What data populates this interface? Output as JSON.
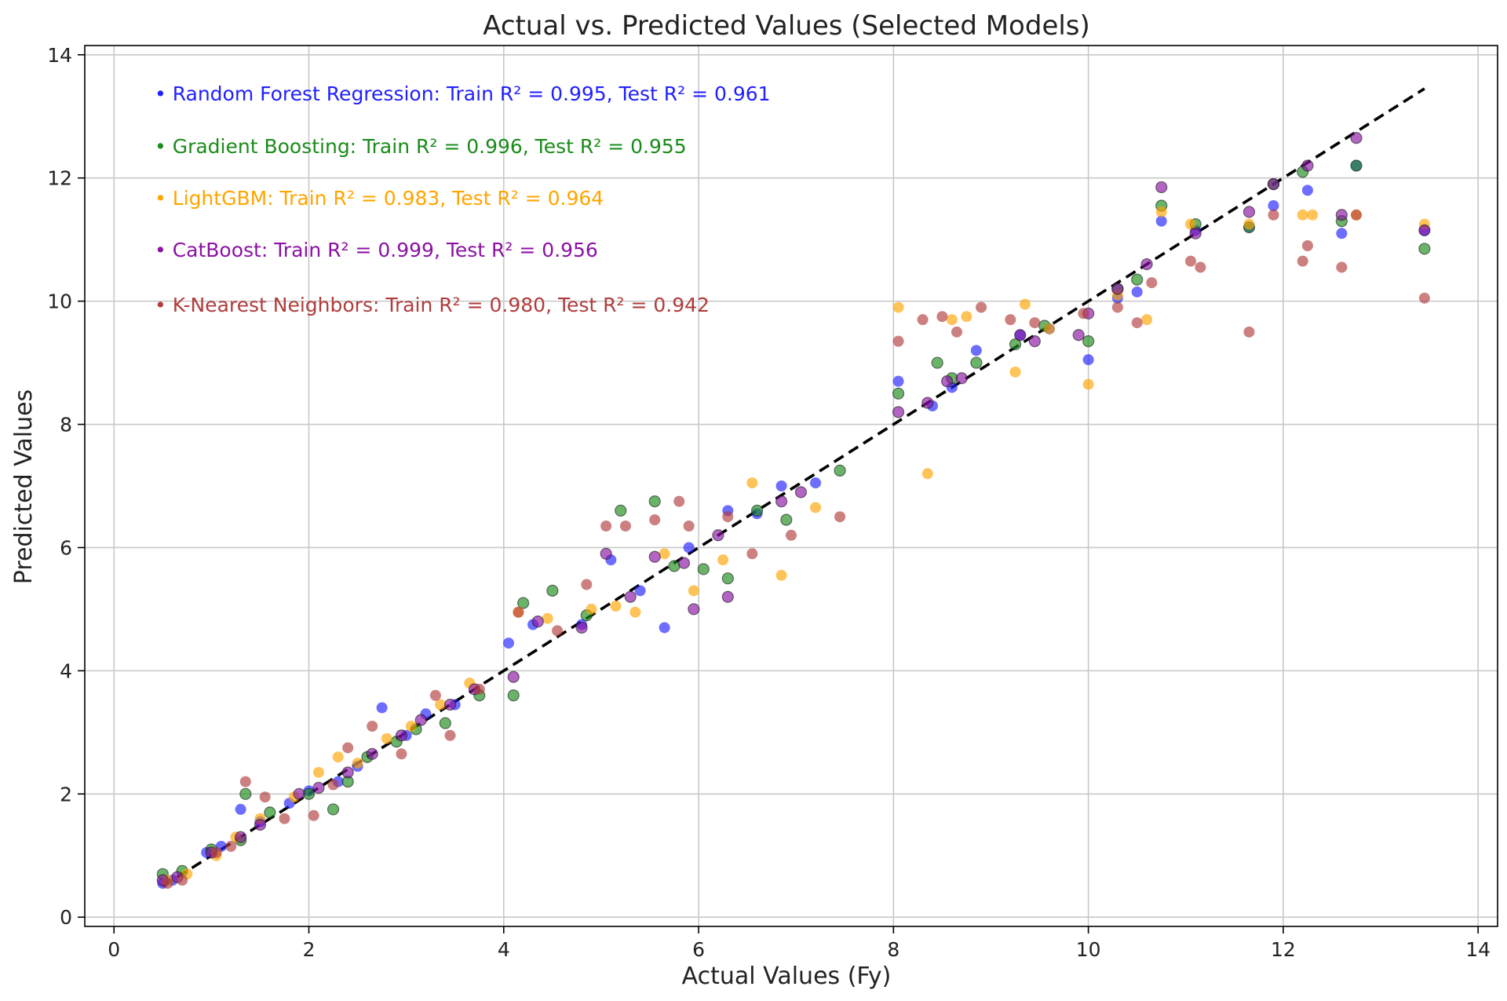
{
  "chart_data": {
    "type": "scatter",
    "title": "Actual vs. Predicted Values (Selected Models)",
    "xlabel": "Actual Values (Fy)",
    "ylabel": "Predicted Values",
    "xlim": [
      -0.3,
      14.2
    ],
    "ylim": [
      -0.15,
      14.15
    ],
    "xticks": [
      0,
      2,
      4,
      6,
      8,
      10,
      12,
      14
    ],
    "yticks": [
      0,
      2,
      4,
      6,
      8,
      10,
      12,
      14
    ],
    "xtick_labels": [
      "0",
      "2",
      "4",
      "6",
      "8",
      "10",
      "12",
      "14"
    ],
    "ytick_labels": [
      "0",
      "2",
      "4",
      "6",
      "8",
      "10",
      "12",
      "14"
    ],
    "grid": true,
    "reference_line": {
      "label": "y = x",
      "from": [
        0.5,
        0.5
      ],
      "to": [
        13.45,
        13.45
      ],
      "style": "dashed",
      "color": "#000000"
    },
    "legend_position": "top-left",
    "series": [
      {
        "name": "Random Forest Regression",
        "legend_text": "• Random Forest Regression: Train R² = 0.995, Test R² = 0.961",
        "color": "#1f1fff",
        "train_r2": 0.995,
        "test_r2": 0.961,
        "points": [
          [
            0.5,
            0.55
          ],
          [
            0.6,
            0.6
          ],
          [
            0.95,
            1.05
          ],
          [
            1.1,
            1.15
          ],
          [
            1.3,
            1.75
          ],
          [
            1.5,
            1.55
          ],
          [
            1.8,
            1.85
          ],
          [
            2.0,
            2.05
          ],
          [
            2.3,
            2.2
          ],
          [
            2.5,
            2.45
          ],
          [
            2.75,
            3.4
          ],
          [
            3.0,
            2.95
          ],
          [
            3.2,
            3.3
          ],
          [
            3.5,
            3.45
          ],
          [
            4.05,
            4.45
          ],
          [
            4.3,
            4.75
          ],
          [
            4.8,
            4.75
          ],
          [
            5.1,
            5.8
          ],
          [
            5.4,
            5.3
          ],
          [
            5.65,
            4.7
          ],
          [
            5.9,
            6.0
          ],
          [
            6.3,
            6.6
          ],
          [
            6.6,
            6.55
          ],
          [
            6.85,
            7.0
          ],
          [
            7.2,
            7.05
          ],
          [
            8.05,
            8.7
          ],
          [
            8.4,
            8.3
          ],
          [
            8.6,
            8.6
          ],
          [
            8.85,
            9.2
          ],
          [
            9.3,
            9.45
          ],
          [
            9.6,
            9.55
          ],
          [
            10.0,
            9.05
          ],
          [
            10.3,
            10.05
          ],
          [
            10.5,
            10.15
          ],
          [
            10.75,
            11.3
          ],
          [
            11.1,
            11.15
          ],
          [
            11.65,
            11.2
          ],
          [
            11.9,
            11.55
          ],
          [
            12.25,
            11.8
          ],
          [
            12.75,
            12.2
          ],
          [
            12.6,
            11.1
          ],
          [
            13.45,
            11.15
          ]
        ]
      },
      {
        "name": "Gradient Boosting",
        "legend_text": "• Gradient Boosting: Train R² = 0.996, Test R² = 0.955",
        "color": "#1a8c1a",
        "train_r2": 0.996,
        "test_r2": 0.955,
        "points": [
          [
            0.5,
            0.7
          ],
          [
            0.7,
            0.75
          ],
          [
            1.0,
            1.1
          ],
          [
            1.3,
            1.25
          ],
          [
            1.35,
            2.0
          ],
          [
            1.6,
            1.7
          ],
          [
            2.0,
            2.0
          ],
          [
            2.25,
            1.75
          ],
          [
            2.4,
            2.2
          ],
          [
            2.6,
            2.6
          ],
          [
            2.9,
            2.85
          ],
          [
            3.1,
            3.05
          ],
          [
            3.4,
            3.15
          ],
          [
            3.75,
            3.6
          ],
          [
            4.1,
            3.6
          ],
          [
            4.2,
            5.1
          ],
          [
            4.5,
            5.3
          ],
          [
            4.85,
            4.9
          ],
          [
            5.2,
            6.6
          ],
          [
            5.55,
            6.75
          ],
          [
            5.75,
            5.7
          ],
          [
            6.05,
            5.65
          ],
          [
            6.3,
            5.5
          ],
          [
            6.6,
            6.6
          ],
          [
            6.9,
            6.45
          ],
          [
            7.45,
            7.25
          ],
          [
            8.05,
            8.5
          ],
          [
            8.45,
            9.0
          ],
          [
            8.6,
            8.75
          ],
          [
            8.85,
            9.0
          ],
          [
            9.25,
            9.3
          ],
          [
            9.55,
            9.6
          ],
          [
            10.0,
            9.35
          ],
          [
            10.3,
            10.2
          ],
          [
            10.5,
            10.35
          ],
          [
            10.75,
            11.55
          ],
          [
            11.1,
            11.25
          ],
          [
            11.65,
            11.2
          ],
          [
            11.9,
            11.9
          ],
          [
            12.2,
            12.1
          ],
          [
            12.75,
            12.2
          ],
          [
            12.6,
            11.3
          ],
          [
            13.45,
            10.85
          ]
        ]
      },
      {
        "name": "LightGBM",
        "legend_text": "• LightGBM: Train R² = 0.983, Test R² = 0.964",
        "color": "#ffa500",
        "train_r2": 0.983,
        "test_r2": 0.964,
        "points": [
          [
            0.55,
            0.6
          ],
          [
            0.75,
            0.7
          ],
          [
            1.05,
            1.0
          ],
          [
            1.25,
            1.3
          ],
          [
            1.5,
            1.6
          ],
          [
            1.85,
            1.95
          ],
          [
            2.1,
            2.35
          ],
          [
            2.3,
            2.6
          ],
          [
            2.5,
            2.5
          ],
          [
            2.8,
            2.9
          ],
          [
            3.05,
            3.1
          ],
          [
            3.35,
            3.45
          ],
          [
            3.65,
            3.8
          ],
          [
            4.15,
            4.95
          ],
          [
            4.45,
            4.85
          ],
          [
            4.9,
            5.0
          ],
          [
            5.15,
            5.05
          ],
          [
            5.35,
            4.95
          ],
          [
            5.65,
            5.9
          ],
          [
            5.95,
            5.3
          ],
          [
            6.25,
            5.8
          ],
          [
            6.55,
            7.05
          ],
          [
            6.85,
            5.55
          ],
          [
            7.2,
            6.65
          ],
          [
            8.05,
            9.9
          ],
          [
            8.35,
            7.2
          ],
          [
            8.6,
            9.7
          ],
          [
            8.75,
            9.75
          ],
          [
            9.25,
            8.85
          ],
          [
            9.35,
            9.95
          ],
          [
            9.6,
            9.55
          ],
          [
            10.0,
            8.65
          ],
          [
            10.3,
            10.1
          ],
          [
            10.6,
            9.7
          ],
          [
            10.75,
            11.45
          ],
          [
            11.05,
            11.25
          ],
          [
            11.65,
            11.25
          ],
          [
            12.2,
            11.4
          ],
          [
            12.3,
            11.4
          ],
          [
            12.75,
            11.4
          ],
          [
            13.45,
            11.25
          ]
        ]
      },
      {
        "name": "CatBoost",
        "legend_text": "• CatBoost: Train R² = 0.999, Test R² = 0.956",
        "color": "#8b12a3",
        "train_r2": 0.999,
        "test_r2": 0.956,
        "points": [
          [
            0.5,
            0.6
          ],
          [
            0.65,
            0.65
          ],
          [
            1.0,
            1.05
          ],
          [
            1.3,
            1.3
          ],
          [
            1.5,
            1.5
          ],
          [
            1.9,
            2.0
          ],
          [
            2.1,
            2.1
          ],
          [
            2.4,
            2.35
          ],
          [
            2.65,
            2.65
          ],
          [
            2.95,
            2.95
          ],
          [
            3.15,
            3.2
          ],
          [
            3.45,
            3.45
          ],
          [
            3.7,
            3.7
          ],
          [
            4.1,
            3.9
          ],
          [
            4.35,
            4.8
          ],
          [
            4.8,
            4.7
          ],
          [
            5.05,
            5.9
          ],
          [
            5.3,
            5.2
          ],
          [
            5.55,
            5.85
          ],
          [
            5.85,
            5.75
          ],
          [
            5.95,
            5.0
          ],
          [
            6.2,
            6.2
          ],
          [
            6.3,
            5.2
          ],
          [
            6.85,
            6.75
          ],
          [
            7.05,
            6.9
          ],
          [
            8.05,
            8.2
          ],
          [
            8.35,
            8.35
          ],
          [
            8.55,
            8.7
          ],
          [
            8.7,
            8.75
          ],
          [
            9.3,
            9.45
          ],
          [
            9.45,
            9.35
          ],
          [
            9.9,
            9.45
          ],
          [
            10.0,
            9.8
          ],
          [
            10.3,
            10.2
          ],
          [
            10.6,
            10.6
          ],
          [
            10.75,
            11.85
          ],
          [
            11.1,
            11.1
          ],
          [
            11.65,
            11.45
          ],
          [
            11.9,
            11.9
          ],
          [
            12.25,
            12.2
          ],
          [
            12.75,
            12.65
          ],
          [
            12.6,
            11.4
          ],
          [
            13.45,
            11.15
          ]
        ]
      },
      {
        "name": "K-Nearest Neighbors",
        "legend_text": "• K-Nearest Neighbors: Train R² = 0.980, Test R² = 0.942",
        "color": "#b03c3c",
        "train_r2": 0.98,
        "test_r2": 0.942,
        "points": [
          [
            0.55,
            0.55
          ],
          [
            0.7,
            0.6
          ],
          [
            1.05,
            1.05
          ],
          [
            1.2,
            1.15
          ],
          [
            1.35,
            2.2
          ],
          [
            1.55,
            1.95
          ],
          [
            1.75,
            1.6
          ],
          [
            2.05,
            1.65
          ],
          [
            2.25,
            2.15
          ],
          [
            2.4,
            2.75
          ],
          [
            2.65,
            3.1
          ],
          [
            2.95,
            2.65
          ],
          [
            3.3,
            3.6
          ],
          [
            3.45,
            2.95
          ],
          [
            3.75,
            3.7
          ],
          [
            4.15,
            4.95
          ],
          [
            4.55,
            4.65
          ],
          [
            4.85,
            5.4
          ],
          [
            5.05,
            6.35
          ],
          [
            5.25,
            6.35
          ],
          [
            5.55,
            6.45
          ],
          [
            5.8,
            6.75
          ],
          [
            5.9,
            6.35
          ],
          [
            6.3,
            6.5
          ],
          [
            6.55,
            5.9
          ],
          [
            6.95,
            6.2
          ],
          [
            7.45,
            6.5
          ],
          [
            8.05,
            9.35
          ],
          [
            8.3,
            9.7
          ],
          [
            8.5,
            9.75
          ],
          [
            8.65,
            9.5
          ],
          [
            8.9,
            9.9
          ],
          [
            9.2,
            9.7
          ],
          [
            9.45,
            9.65
          ],
          [
            9.95,
            9.8
          ],
          [
            10.3,
            9.9
          ],
          [
            10.5,
            9.65
          ],
          [
            10.65,
            10.3
          ],
          [
            11.05,
            10.65
          ],
          [
            11.15,
            10.55
          ],
          [
            11.65,
            9.5
          ],
          [
            11.9,
            11.4
          ],
          [
            12.2,
            10.65
          ],
          [
            12.25,
            10.9
          ],
          [
            12.6,
            10.55
          ],
          [
            12.75,
            11.4
          ],
          [
            13.45,
            10.05
          ]
        ]
      }
    ]
  }
}
